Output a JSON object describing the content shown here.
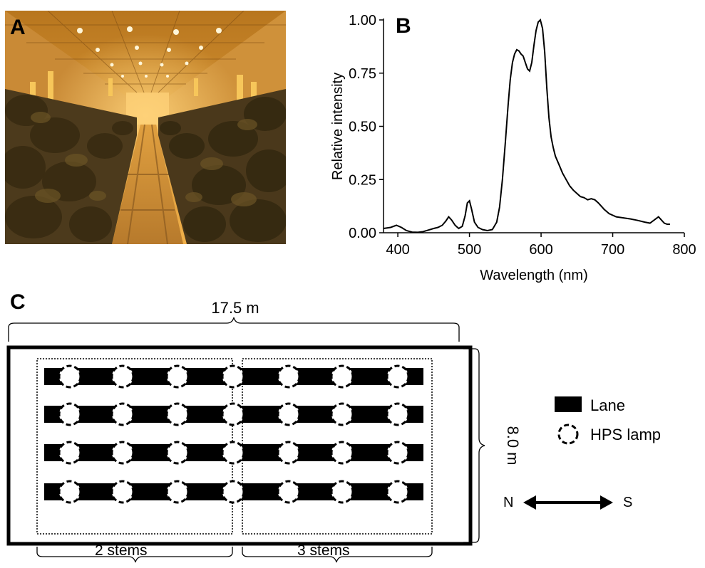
{
  "panels": {
    "a": {
      "letter": "A"
    },
    "b": {
      "letter": "B"
    },
    "c": {
      "letter": "C"
    }
  },
  "chart_data": {
    "type": "line",
    "xlabel": "Wavelength (nm)",
    "ylabel": "Relative intensity",
    "xlim": [
      380,
      800
    ],
    "ylim": [
      0,
      1.0
    ],
    "x_ticks": [
      "400",
      "500",
      "600",
      "700",
      "800"
    ],
    "y_ticks": [
      "0.00",
      "0.25",
      "0.50",
      "0.75",
      "1.00"
    ],
    "grid": false,
    "series": [
      {
        "x": [
          380,
          390,
          398,
          405,
          412,
          420,
          428,
          435,
          442,
          450,
          456,
          462,
          467,
          471,
          475,
          480,
          485,
          490,
          494,
          497,
          500,
          503,
          507,
          512,
          518,
          525,
          532,
          538,
          542,
          546,
          550,
          554,
          557,
          560,
          563,
          566,
          569,
          572,
          575,
          578,
          581,
          584,
          587,
          590,
          593,
          596,
          599,
          602,
          605,
          608,
          611,
          614,
          617,
          620,
          625,
          630,
          635,
          640,
          645,
          650,
          655,
          660,
          665,
          670,
          675,
          680,
          688,
          695,
          705,
          715,
          725,
          735,
          745,
          752,
          756,
          760,
          764,
          768,
          772,
          776,
          780
        ],
        "y": [
          0.02,
          0.025,
          0.035,
          0.025,
          0.01,
          0.003,
          0.002,
          0.005,
          0.012,
          0.02,
          0.025,
          0.035,
          0.055,
          0.075,
          0.06,
          0.035,
          0.02,
          0.03,
          0.08,
          0.14,
          0.15,
          0.11,
          0.05,
          0.025,
          0.015,
          0.01,
          0.015,
          0.05,
          0.12,
          0.25,
          0.42,
          0.6,
          0.72,
          0.8,
          0.84,
          0.86,
          0.855,
          0.84,
          0.83,
          0.8,
          0.77,
          0.76,
          0.8,
          0.88,
          0.95,
          0.99,
          1.0,
          0.96,
          0.85,
          0.68,
          0.54,
          0.45,
          0.4,
          0.36,
          0.32,
          0.28,
          0.25,
          0.22,
          0.2,
          0.185,
          0.17,
          0.165,
          0.155,
          0.16,
          0.155,
          0.14,
          0.11,
          0.09,
          0.075,
          0.07,
          0.065,
          0.058,
          0.05,
          0.045,
          0.055,
          0.065,
          0.075,
          0.06,
          0.045,
          0.04,
          0.04
        ]
      }
    ]
  },
  "diagram": {
    "width_label": "17.5 m",
    "height_label": "8.0 m",
    "section_labels": [
      "2 stems",
      "3 stems"
    ],
    "legend": [
      {
        "symbol": "lane",
        "label": "Lane"
      },
      {
        "symbol": "hps-lamp",
        "label": "HPS lamp"
      }
    ],
    "compass": {
      "left": "N",
      "right": "S"
    }
  }
}
